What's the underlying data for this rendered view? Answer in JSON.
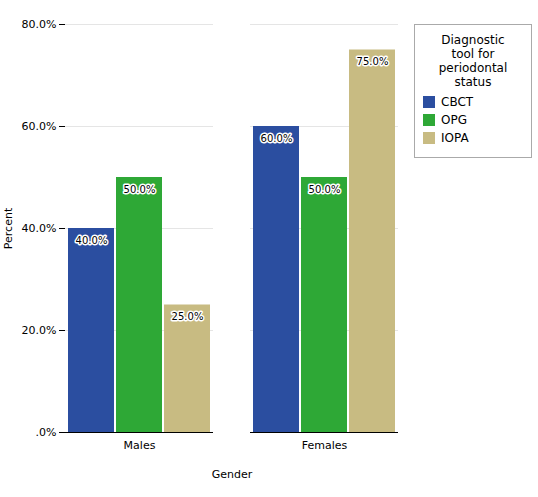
{
  "chart_data": {
    "type": "bar",
    "categories": [
      "Males",
      "Females"
    ],
    "series": [
      {
        "name": "CBCT",
        "color": "#2B4EA0",
        "values": [
          40.0,
          60.0
        ],
        "value_labels": [
          "40.0%",
          "60.0%"
        ]
      },
      {
        "name": "OPG",
        "color": "#2EA836",
        "values": [
          50.0,
          50.0
        ],
        "value_labels": [
          "50.0%",
          "50.0%"
        ]
      },
      {
        "name": "IOPA",
        "color": "#C8BB82",
        "values": [
          25.0,
          75.0
        ],
        "value_labels": [
          "25.0%",
          "75.0%"
        ]
      }
    ],
    "xlabel": "Gender",
    "ylabel": "Percent",
    "legend_title": "Diagnostic\ntool for\nperiodontal\nstatus",
    "legend": "right",
    "ylim": [
      0,
      80
    ],
    "yticks": [
      {
        "value": 0,
        "label": ".0%"
      },
      {
        "value": 20,
        "label": "20.0%"
      },
      {
        "value": 40,
        "label": "40.0%"
      },
      {
        "value": 60,
        "label": "60.0%"
      },
      {
        "value": 80,
        "label": "80.0%"
      }
    ],
    "grid": true,
    "data_labels": true
  }
}
